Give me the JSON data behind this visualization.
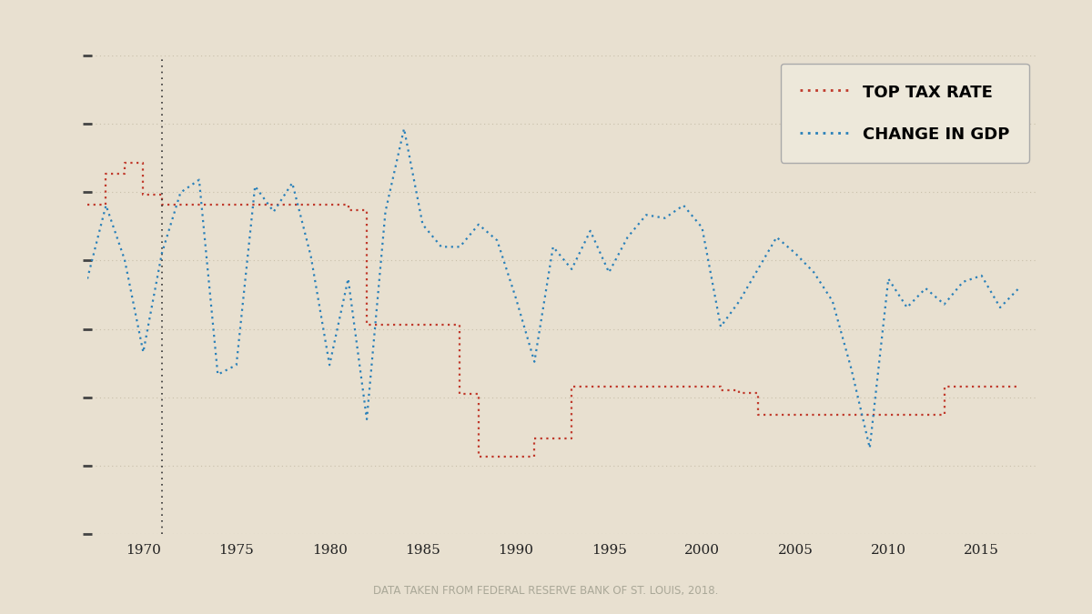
{
  "background_color": "#e8e0d0",
  "grid_color": "#c8bfaa",
  "tax_color": "#c0392b",
  "gdp_color": "#2980b9",
  "vline_color": "#333333",
  "vline_x": 1971,
  "legend_bg": "#ede8da",
  "legend_edge": "#aaaaaa",
  "footnote": "DATA TAKEN FROM FEDERAL RESERVE BANK OF ST. LOUIS, 2018.",
  "footnote_color": "#aaa898",
  "tax_rate_years": [
    1967,
    1968,
    1969,
    1970,
    1971,
    1972,
    1973,
    1974,
    1975,
    1976,
    1977,
    1978,
    1979,
    1980,
    1981,
    1982,
    1983,
    1984,
    1985,
    1986,
    1987,
    1988,
    1989,
    1990,
    1991,
    1992,
    1993,
    1994,
    1995,
    1996,
    1997,
    1998,
    1999,
    2000,
    2001,
    2002,
    2003,
    2004,
    2005,
    2006,
    2007,
    2008,
    2009,
    2010,
    2011,
    2012,
    2013,
    2014,
    2015,
    2016,
    2017
  ],
  "tax_rate_values": [
    70,
    75.25,
    77,
    71.75,
    70,
    70,
    70,
    70,
    70,
    70,
    70,
    70,
    70,
    70,
    69.125,
    50,
    50,
    50,
    50,
    50,
    38.5,
    28,
    28,
    28,
    31,
    31,
    39.6,
    39.6,
    39.6,
    39.6,
    39.6,
    39.6,
    39.6,
    39.6,
    39.1,
    38.6,
    35,
    35,
    35,
    35,
    35,
    35,
    35,
    35,
    35,
    35,
    39.6,
    39.6,
    39.6,
    39.6,
    39.6
  ],
  "gdp_years": [
    1967,
    1968,
    1969,
    1970,
    1971,
    1972,
    1973,
    1974,
    1975,
    1976,
    1977,
    1978,
    1979,
    1980,
    1981,
    1982,
    1983,
    1984,
    1985,
    1986,
    1987,
    1988,
    1989,
    1990,
    1991,
    1992,
    1993,
    1994,
    1995,
    1996,
    1997,
    1998,
    1999,
    2000,
    2001,
    2002,
    2003,
    2004,
    2005,
    2006,
    2007,
    2008,
    2009,
    2010,
    2011,
    2012,
    2013,
    2014,
    2015,
    2016,
    2017
  ],
  "gdp_values": [
    2.5,
    4.8,
    3.1,
    0.2,
    3.3,
    5.2,
    5.6,
    -0.5,
    -0.2,
    5.4,
    4.6,
    5.5,
    3.2,
    -0.2,
    2.5,
    -1.9,
    4.6,
    7.2,
    4.2,
    3.5,
    3.5,
    4.2,
    3.7,
    1.9,
    -0.1,
    3.5,
    2.8,
    4.0,
    2.7,
    3.8,
    4.5,
    4.4,
    4.8,
    4.1,
    1.0,
    1.8,
    2.8,
    3.8,
    3.3,
    2.7,
    1.8,
    -0.3,
    -2.8,
    2.5,
    1.6,
    2.2,
    1.7,
    2.4,
    2.6,
    1.6,
    2.2
  ],
  "xlim": [
    1967,
    2018
  ],
  "xticks": [
    1970,
    1975,
    1980,
    1985,
    1990,
    1995,
    2000,
    2005,
    2010,
    2015
  ],
  "ylim_tax": [
    15,
    95
  ],
  "ylim_gdp": [
    -5.5,
    9.5
  ],
  "n_gridlines": 8,
  "legend_fontsize": 13,
  "tick_fontsize": 11
}
